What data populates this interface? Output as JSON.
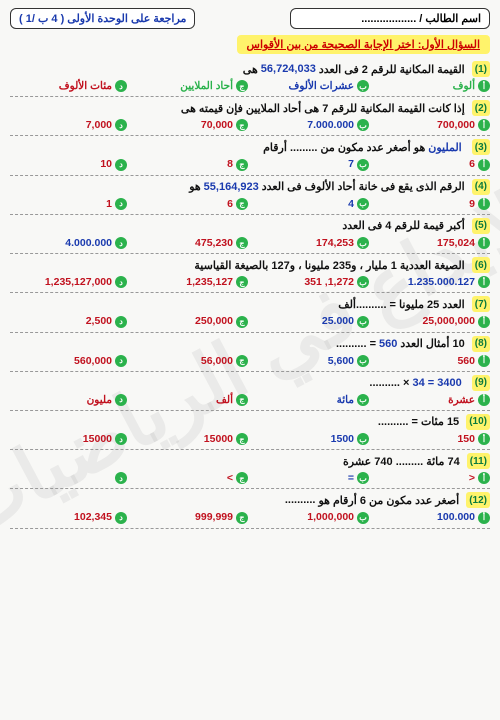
{
  "header": {
    "student_label": "اسم الطالب / ..................",
    "unit_label": "مراجعة على الوحدة الأولى  ( 4 ب /1 )"
  },
  "section_title": "السؤال الأول: اختر الإجابة الصحيحة من بين الأقواس",
  "watermark": "الإبداع في الرياضيات",
  "colors": {
    "yellow": "#fff36b",
    "green": "#2bb24c",
    "red": "#c1121f",
    "blue": "#1a3aae"
  },
  "questions": [
    {
      "n": "(1)",
      "text_a": "القيمة المكانية للرقم 2 فى العدد ",
      "num": "56,724,033",
      "text_b": " هى",
      "opts": [
        {
          "t": "ألوف",
          "c": "green"
        },
        {
          "t": "عشرات الألوف",
          "c": "blue"
        },
        {
          "t": "أحاد الملايين",
          "c": "green"
        },
        {
          "t": "مئات الألوف",
          "c": "red"
        }
      ]
    },
    {
      "n": "(2)",
      "text_a": "إذا كانت القيمة المكانية للرقم 7 هى أحاد الملايين فإن قيمته هى",
      "num": "",
      "text_b": "",
      "opts": [
        {
          "t": "700,000",
          "c": "red"
        },
        {
          "t": "7.000.000",
          "c": "blue"
        },
        {
          "t": "70,000",
          "c": "red"
        },
        {
          "t": "7,000",
          "c": "red"
        }
      ]
    },
    {
      "n": "(3)",
      "text_a": "",
      "num": "المليون",
      "text_b": " هو أصغر عدد مكون من ......... أرقام",
      "opts": [
        {
          "t": "6",
          "c": "red"
        },
        {
          "t": "7",
          "c": "blue"
        },
        {
          "t": "8",
          "c": "red"
        },
        {
          "t": "10",
          "c": "red"
        }
      ]
    },
    {
      "n": "(4)",
      "text_a": "الرقم الذى يقع فى خانة أحاد الألوف فى العدد ",
      "num": "55,164,923",
      "text_b": " هو",
      "opts": [
        {
          "t": "9",
          "c": "red"
        },
        {
          "t": "4",
          "c": "blue"
        },
        {
          "t": "6",
          "c": "red"
        },
        {
          "t": "1",
          "c": "red"
        }
      ]
    },
    {
      "n": "(5)",
      "text_a": "أكبر قيمة للرقم 4 فى العدد ",
      "num": "",
      "text_b": "",
      "opts": [
        {
          "t": "175,024",
          "c": "red"
        },
        {
          "t": "174,253",
          "c": "red"
        },
        {
          "t": "475,230",
          "c": "red"
        },
        {
          "t": "4.000.000",
          "c": "blue"
        }
      ]
    },
    {
      "n": "(6)",
      "text_a": "الصيغة العددية 1 مليار ، و235 مليونا ، و127 بالصيغة القياسية",
      "num": "",
      "text_b": "",
      "opts": [
        {
          "t": "1.235.000.127",
          "c": "blue"
        },
        {
          "t": "1,272, 351",
          "c": "red"
        },
        {
          "t": "1,235,127",
          "c": "red"
        },
        {
          "t": "1,235,127,000",
          "c": "red"
        }
      ]
    },
    {
      "n": "(7)",
      "text_a": "العدد 25 مليونا = ",
      "num": "",
      "text_b": "..........ألف",
      "opts": [
        {
          "t": "25,000,000",
          "c": "red"
        },
        {
          "t": "25.000",
          "c": "blue"
        },
        {
          "t": "250,000",
          "c": "red"
        },
        {
          "t": "2,500",
          "c": "red"
        }
      ]
    },
    {
      "n": "(8)",
      "text_a": "10 أمثال العدد ",
      "num": "560",
      "text_b": " = ..........",
      "opts": [
        {
          "t": "560",
          "c": "red"
        },
        {
          "t": "5,600",
          "c": "blue"
        },
        {
          "t": "56,000",
          "c": "red"
        },
        {
          "t": "560,000",
          "c": "red"
        }
      ]
    },
    {
      "n": "(9)",
      "text_a": "",
      "num": "3400 = 34",
      "text_b": " × ..........",
      "opts": [
        {
          "t": "عشرة",
          "c": "red"
        },
        {
          "t": "مائة",
          "c": "blue"
        },
        {
          "t": "ألف",
          "c": "red"
        },
        {
          "t": "مليون",
          "c": "red"
        }
      ]
    },
    {
      "n": "(10)",
      "text_a": "15 مئات = ",
      "num": "",
      "text_b": "..........",
      "opts": [
        {
          "t": "150",
          "c": "red"
        },
        {
          "t": "1500",
          "c": "blue"
        },
        {
          "t": "15000",
          "c": "red"
        },
        {
          "t": "15000",
          "c": "red"
        }
      ]
    },
    {
      "n": "(11)",
      "text_a": "74 مائة ",
      "num": "",
      "text_b": "......... 740 عشرة",
      "opts": [
        {
          "t": "<",
          "c": "red"
        },
        {
          "t": "=",
          "c": "blue"
        },
        {
          "t": ">",
          "c": "red"
        },
        {
          "t": "",
          "c": "red"
        }
      ]
    },
    {
      "n": "(12)",
      "text_a": "أصغر عدد مكون من 6 أرقام هو ",
      "num": "",
      "text_b": "..........",
      "opts": [
        {
          "t": "100.000",
          "c": "blue"
        },
        {
          "t": "1,000,000",
          "c": "red"
        },
        {
          "t": "999,999",
          "c": "red"
        },
        {
          "t": "102,345",
          "c": "red"
        }
      ]
    }
  ]
}
